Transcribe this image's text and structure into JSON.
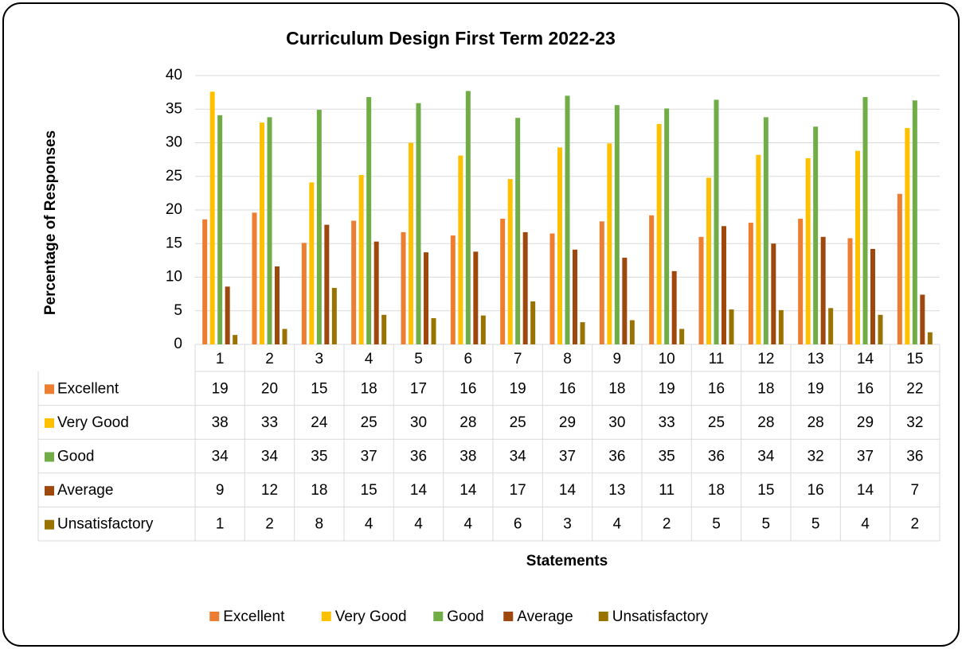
{
  "chart_data": {
    "type": "bar",
    "title": "Curriculum Design First Term 2022-23",
    "x_label": "Statements",
    "y_label": "Percentage of Responses",
    "categories": [
      "1",
      "2",
      "3",
      "4",
      "5",
      "6",
      "7",
      "8",
      "9",
      "10",
      "11",
      "12",
      "13",
      "14",
      "15"
    ],
    "series": [
      {
        "name": "Excellent",
        "color": "#ED7D31",
        "values": [
          18.6,
          19.6,
          15.1,
          18.4,
          16.7,
          16.2,
          18.7,
          16.5,
          18.3,
          19.2,
          16.0,
          18.1,
          18.7,
          15.8,
          22.4
        ],
        "value_labels": [
          "19",
          "20",
          "15",
          "18",
          "17",
          "16",
          "19",
          "16",
          "18",
          "19",
          "16",
          "18",
          "19",
          "16",
          "22"
        ]
      },
      {
        "name": "Very Good",
        "color": "#FFC000",
        "values": [
          37.6,
          33.0,
          24.1,
          25.2,
          30.0,
          28.1,
          24.6,
          29.3,
          29.9,
          32.8,
          24.8,
          28.2,
          27.7,
          28.8,
          32.2
        ],
        "value_labels": [
          "38",
          "33",
          "24",
          "25",
          "30",
          "28",
          "25",
          "29",
          "30",
          "33",
          "25",
          "28",
          "28",
          "29",
          "32"
        ]
      },
      {
        "name": "Good",
        "color": "#70AD47",
        "values": [
          34.1,
          33.8,
          34.9,
          36.8,
          35.9,
          37.7,
          33.7,
          37.0,
          35.6,
          35.1,
          36.4,
          33.8,
          32.4,
          36.8,
          36.3
        ],
        "value_labels": [
          "34",
          "34",
          "35",
          "37",
          "36",
          "38",
          "34",
          "37",
          "36",
          "35",
          "36",
          "34",
          "32",
          "37",
          "36"
        ]
      },
      {
        "name": "Average",
        "color": "#9E480E",
        "values": [
          8.6,
          11.6,
          17.8,
          15.3,
          13.7,
          13.8,
          16.7,
          14.1,
          12.9,
          10.9,
          17.6,
          15.0,
          16.0,
          14.2,
          7.4
        ],
        "value_labels": [
          "9",
          "12",
          "18",
          "15",
          "14",
          "14",
          "17",
          "14",
          "13",
          "11",
          "18",
          "15",
          "16",
          "14",
          "7"
        ]
      },
      {
        "name": "Unsatisfactory",
        "color": "#997300",
        "values": [
          1.4,
          2.3,
          8.4,
          4.4,
          3.9,
          4.3,
          6.4,
          3.3,
          3.6,
          2.3,
          5.2,
          5.1,
          5.4,
          4.4,
          1.8
        ],
        "value_labels": [
          "1",
          "2",
          "8",
          "4",
          "4",
          "4",
          "6",
          "3",
          "4",
          "2",
          "5",
          "5",
          "5",
          "4",
          "2"
        ]
      }
    ],
    "ylim": [
      0,
      40
    ],
    "yticks": [
      0,
      5,
      10,
      15,
      20,
      25,
      30,
      35,
      40
    ],
    "grid": true,
    "legend": "bottom",
    "data_table": true
  }
}
